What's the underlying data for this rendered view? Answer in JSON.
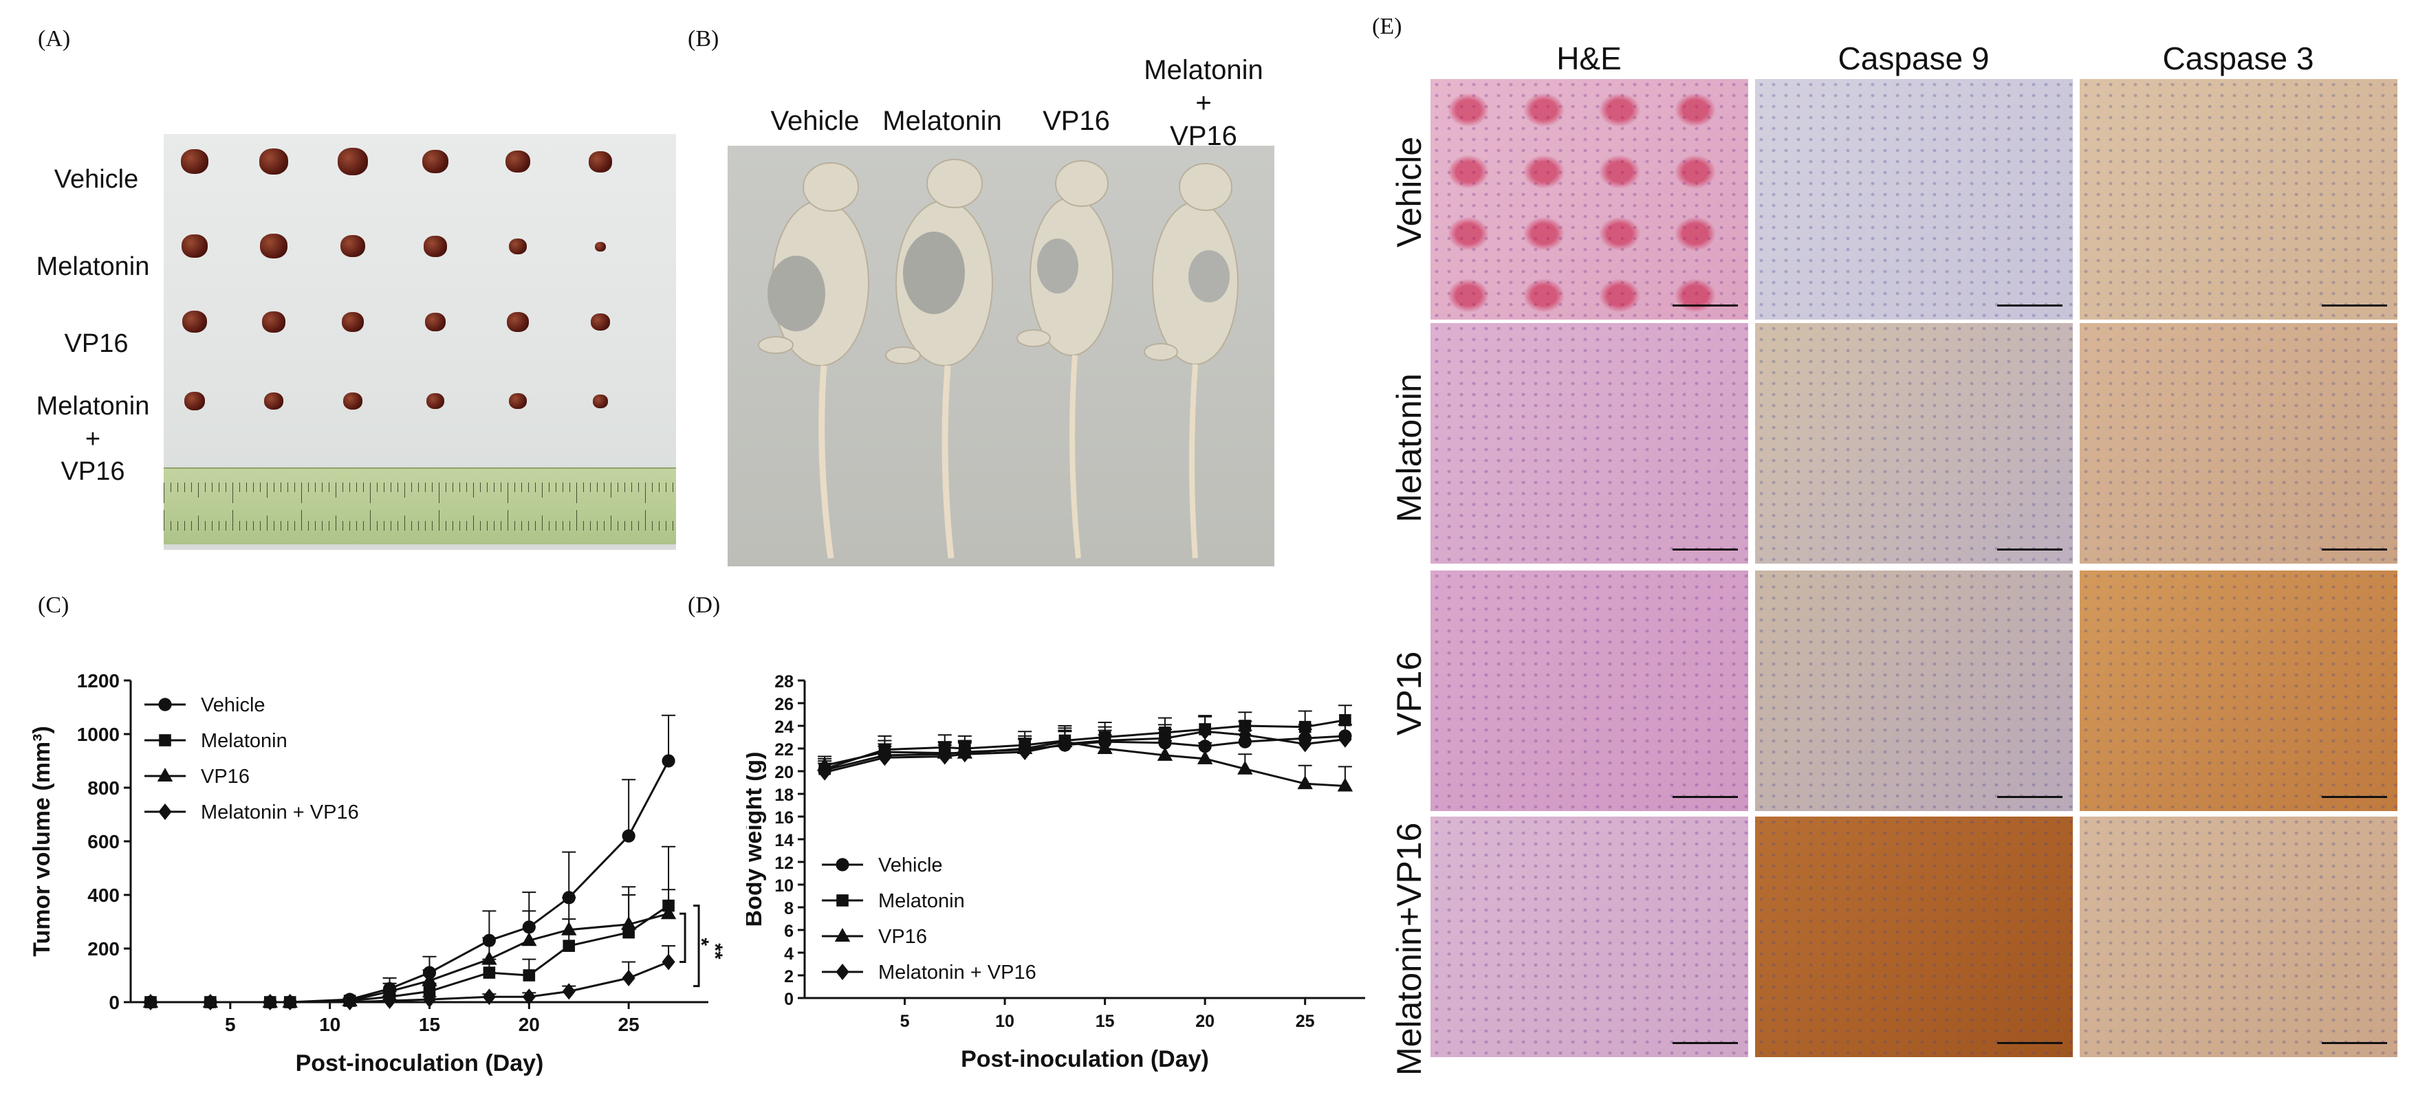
{
  "panels": {
    "A": {
      "label": "(A)",
      "rows": [
        "Vehicle",
        "Melatonin",
        "VP16",
        "Melatonin\n+\nVP16"
      ]
    },
    "B": {
      "label": "(B)",
      "groups": [
        "Vehicle",
        "Melatonin",
        "VP16",
        "Melatonin\n+\nVP16"
      ]
    },
    "C": {
      "label": "(C)"
    },
    "D": {
      "label": "(D)"
    },
    "E": {
      "label": "(E)",
      "columns": [
        "H&E",
        "Caspase 9",
        "Caspase 3"
      ],
      "rows": [
        "Vehicle",
        "Melatonin",
        "VP16",
        "Melatonin+VP16"
      ]
    }
  },
  "colors": {
    "line": "#111111",
    "tissue_he": "#d9a7c9",
    "tissue_ihc_blue": "#c9c3d8",
    "tissue_brown": "#c8874a",
    "ruler": "#b6c98f",
    "tumor": "#5a1a12"
  },
  "chart_data": [
    {
      "type": "line",
      "panel": "C",
      "xlabel": "Post-inoculation (Day)",
      "ylabel": "Tumor volume (mm³)",
      "xlim": [
        0,
        29
      ],
      "ylim": [
        0,
        1200
      ],
      "xticks": [
        5,
        10,
        15,
        20,
        25
      ],
      "yticks": [
        0,
        200,
        400,
        600,
        800,
        1000,
        1200
      ],
      "legend_position": "top-left",
      "significance": [
        "*",
        "**"
      ],
      "series": [
        {
          "name": "Vehicle",
          "marker": "circle",
          "x": [
            1,
            4,
            7,
            8,
            11,
            13,
            15,
            18,
            20,
            22,
            25,
            27
          ],
          "y": [
            0,
            0,
            0,
            0,
            10,
            50,
            110,
            230,
            280,
            390,
            620,
            900
          ],
          "err": [
            0,
            0,
            0,
            0,
            5,
            40,
            60,
            110,
            130,
            170,
            210,
            170
          ]
        },
        {
          "name": "Melatonin",
          "marker": "square",
          "x": [
            1,
            4,
            7,
            8,
            11,
            13,
            15,
            18,
            20,
            22,
            25,
            27
          ],
          "y": [
            0,
            0,
            0,
            0,
            5,
            20,
            40,
            110,
            100,
            210,
            260,
            360
          ],
          "err": [
            0,
            0,
            0,
            0,
            5,
            20,
            30,
            50,
            60,
            100,
            140,
            220
          ]
        },
        {
          "name": "VP16",
          "marker": "triangle",
          "x": [
            1,
            4,
            7,
            8,
            11,
            13,
            15,
            18,
            20,
            22,
            25,
            27
          ],
          "y": [
            0,
            0,
            0,
            0,
            5,
            40,
            80,
            160,
            230,
            270,
            290,
            330
          ],
          "err": [
            0,
            0,
            0,
            0,
            5,
            30,
            40,
            80,
            110,
            120,
            140,
            90
          ]
        },
        {
          "name": "Melatonin + VP16",
          "marker": "diamond",
          "x": [
            1,
            4,
            7,
            8,
            11,
            13,
            15,
            18,
            20,
            22,
            25,
            27
          ],
          "y": [
            0,
            0,
            0,
            0,
            0,
            5,
            10,
            20,
            20,
            40,
            90,
            150
          ],
          "err": [
            0,
            0,
            0,
            0,
            0,
            5,
            10,
            10,
            15,
            20,
            60,
            60
          ]
        }
      ]
    },
    {
      "type": "line",
      "panel": "D",
      "xlabel": "Post-inoculation (Day)",
      "ylabel": "Body weight (g)",
      "xlim": [
        0,
        28
      ],
      "ylim": [
        0,
        28
      ],
      "xticks": [
        5,
        10,
        15,
        20,
        25
      ],
      "yticks": [
        0,
        2,
        4,
        6,
        8,
        10,
        12,
        14,
        16,
        18,
        20,
        22,
        24,
        26,
        28
      ],
      "legend_position": "bottom-left",
      "series": [
        {
          "name": "Vehicle",
          "marker": "circle",
          "x": [
            1,
            4,
            7,
            8,
            11,
            13,
            15,
            18,
            20,
            22,
            25,
            27
          ],
          "y": [
            20.1,
            21.4,
            21.5,
            21.7,
            21.9,
            22.3,
            22.6,
            22.5,
            22.2,
            22.6,
            22.9,
            23.1
          ],
          "err": [
            0.8,
            1.0,
            1.0,
            1.0,
            1.0,
            1.2,
            1.0,
            1.2,
            1.2,
            1.0,
            1.2,
            1.0
          ]
        },
        {
          "name": "Melatonin",
          "marker": "square",
          "x": [
            1,
            4,
            7,
            8,
            11,
            13,
            15,
            18,
            20,
            22,
            25,
            27
          ],
          "y": [
            20.2,
            21.9,
            22.1,
            22.0,
            22.3,
            22.7,
            23.0,
            23.4,
            23.7,
            24.0,
            23.9,
            24.5
          ],
          "err": [
            0.9,
            1.2,
            1.1,
            1.1,
            1.2,
            1.3,
            1.3,
            1.3,
            1.2,
            1.2,
            1.4,
            1.3
          ]
        },
        {
          "name": "VP16",
          "marker": "triangle",
          "x": [
            1,
            4,
            7,
            8,
            11,
            13,
            15,
            18,
            20,
            22,
            25,
            27
          ],
          "y": [
            20.5,
            21.7,
            21.6,
            21.6,
            22.0,
            22.6,
            22.0,
            21.4,
            21.1,
            20.2,
            18.9,
            18.7
          ],
          "err": [
            0.8,
            1.0,
            1.0,
            1.0,
            1.1,
            1.2,
            1.2,
            1.3,
            1.4,
            1.3,
            1.6,
            1.7
          ]
        },
        {
          "name": "Melatonin + VP16",
          "marker": "diamond",
          "x": [
            1,
            4,
            7,
            8,
            11,
            13,
            15,
            18,
            20,
            22,
            25,
            27
          ],
          "y": [
            19.9,
            21.2,
            21.3,
            21.5,
            21.7,
            22.4,
            22.7,
            22.9,
            23.5,
            23.2,
            22.4,
            22.8
          ],
          "err": [
            0.8,
            1.0,
            1.0,
            1.0,
            1.1,
            1.2,
            1.2,
            1.2,
            1.3,
            1.2,
            1.3,
            1.3
          ]
        }
      ]
    }
  ]
}
